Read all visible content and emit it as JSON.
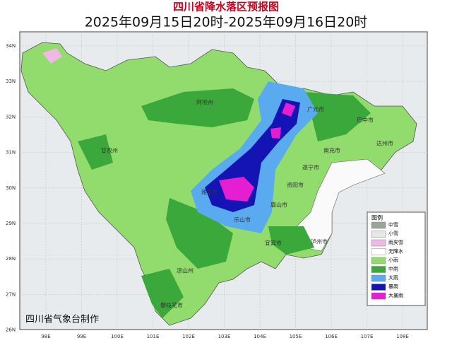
{
  "header": {
    "title": "四川省降水落区预报图",
    "subtitle": "2025年09月15日20时-2025年09月16日20时"
  },
  "lat_labels": [
    "34N",
    "33N",
    "32N",
    "31N",
    "30N",
    "29N",
    "28N",
    "27N",
    "26N"
  ],
  "lon_labels": [
    "98E",
    "99E",
    "100E",
    "101E",
    "102E",
    "103E",
    "104E",
    "105E",
    "106E",
    "107E",
    "108E"
  ],
  "cities": [
    "阿坝州",
    "甘孜州",
    "广元市",
    "巴中市",
    "达州市",
    "南充市",
    "遂宁市",
    "资阳市",
    "雅安市",
    "眉山市",
    "乐山市",
    "宜宾市",
    "泸州市",
    "凉山州",
    "攀枝花市"
  ],
  "legend": {
    "title": "图例",
    "items": [
      {
        "label": "中雪",
        "color": "#9aa59a"
      },
      {
        "label": "小雪",
        "color": "#e6e6e6"
      },
      {
        "label": "雨夹雪",
        "color": "#f0b8e6"
      },
      {
        "label": "无降水",
        "color": "#ffffff"
      },
      {
        "label": "小雨",
        "color": "#92dc6e"
      },
      {
        "label": "中雨",
        "color": "#3aa83a"
      },
      {
        "label": "大雨",
        "color": "#5aaaf0"
      },
      {
        "label": "暴雨",
        "color": "#1414b4"
      },
      {
        "label": "大暴雨",
        "color": "#e61ed2"
      }
    ]
  },
  "credit": "四川省气象台制作"
}
